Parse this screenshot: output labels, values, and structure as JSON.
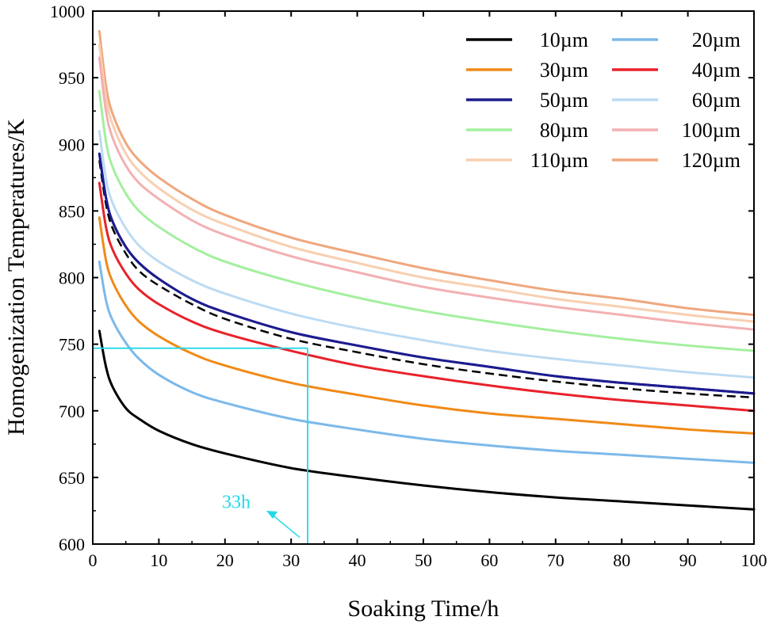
{
  "chart_data": {
    "type": "line",
    "title": "",
    "xlabel": "Soaking Time/h",
    "ylabel": "Homogenization Temperatures/K",
    "xlim": [
      0,
      100
    ],
    "ylim": [
      600,
      1000
    ],
    "xticks": [
      0,
      10,
      20,
      30,
      40,
      50,
      60,
      70,
      80,
      90,
      100
    ],
    "yticks": [
      600,
      650,
      700,
      750,
      800,
      850,
      900,
      950,
      1000
    ],
    "x": [
      1,
      2,
      3,
      5,
      7,
      10,
      15,
      20,
      30,
      40,
      50,
      60,
      70,
      80,
      90,
      100
    ],
    "series": [
      {
        "name": "10µm",
        "color": "#000000",
        "values": [
          760,
          733,
          718,
          702,
          694,
          685,
          675,
          668,
          657,
          650,
          644,
          639,
          635,
          632,
          629,
          626
        ]
      },
      {
        "name": "20µm",
        "color": "#7cb9ea",
        "values": [
          812,
          783,
          768,
          751,
          739,
          727,
          714,
          706,
          694,
          686,
          679,
          674,
          670,
          667,
          664,
          661
        ]
      },
      {
        "name": "30µm",
        "color": "#f08a17",
        "values": [
          845,
          813,
          797,
          779,
          767,
          756,
          743,
          734,
          721,
          712,
          704,
          698,
          694,
          690,
          686,
          683
        ]
      },
      {
        "name": "40µm",
        "color": "#e8222b",
        "values": [
          871,
          838,
          821,
          803,
          791,
          780,
          767,
          758,
          745,
          734,
          726,
          719,
          713,
          708,
          704,
          700
        ]
      },
      {
        "name": "50µm",
        "color": "#1c1c8f",
        "values": [
          893,
          860,
          842,
          823,
          811,
          799,
          784,
          774,
          759,
          749,
          740,
          733,
          726,
          721,
          717,
          713
        ]
      },
      {
        "name": "60µm",
        "color": "#bcdbf3",
        "values": [
          910,
          874,
          856,
          837,
          824,
          812,
          798,
          788,
          773,
          762,
          753,
          745,
          739,
          734,
          729,
          725
        ]
      },
      {
        "name": "80µm",
        "color": "#a3ef9e",
        "values": [
          940,
          902,
          883,
          863,
          850,
          838,
          823,
          812,
          797,
          785,
          775,
          767,
          760,
          754,
          749,
          745
        ]
      },
      {
        "name": "100µm",
        "color": "#f3b0b2",
        "values": [
          965,
          925,
          905,
          884,
          871,
          859,
          843,
          832,
          816,
          804,
          793,
          785,
          778,
          772,
          766,
          761
        ]
      },
      {
        "name": "110µm",
        "color": "#f8cfb0",
        "values": [
          975,
          935,
          915,
          893,
          880,
          867,
          851,
          840,
          823,
          811,
          800,
          792,
          784,
          778,
          772,
          767
        ]
      },
      {
        "name": "120µm",
        "color": "#efa77e",
        "values": [
          985,
          944,
          923,
          901,
          888,
          875,
          859,
          847,
          830,
          818,
          807,
          798,
          790,
          784,
          777,
          772
        ]
      }
    ],
    "dashed_series": {
      "color": "#000000",
      "values": [
        888,
        855,
        837,
        818,
        805,
        794,
        780,
        769,
        754,
        744,
        735,
        728,
        722,
        717,
        713,
        710
      ]
    },
    "legend_position": "top-right",
    "annotation": {
      "label": "33h",
      "x": 32.5,
      "y": 747,
      "color": "#22d8e8"
    }
  }
}
